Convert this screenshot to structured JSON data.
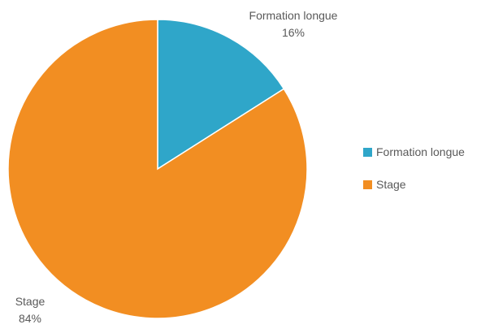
{
  "chart_data": {
    "type": "pie",
    "title": "",
    "start_angle_deg": 0,
    "direction": "clockwise",
    "categories": [
      "Formation longue",
      "Stage"
    ],
    "values": [
      16,
      84
    ],
    "unit": "%",
    "colors": [
      "#2fa6c9",
      "#f28e22"
    ],
    "data_labels": [
      {
        "category": "Formation longue",
        "value_text": "16%"
      },
      {
        "category": "Stage",
        "value_text": "84%"
      }
    ],
    "legend": {
      "position": "right",
      "entries": [
        {
          "label": "Formation longue",
          "color": "#2fa6c9"
        },
        {
          "label": "Stage",
          "color": "#f28e22"
        }
      ]
    }
  }
}
